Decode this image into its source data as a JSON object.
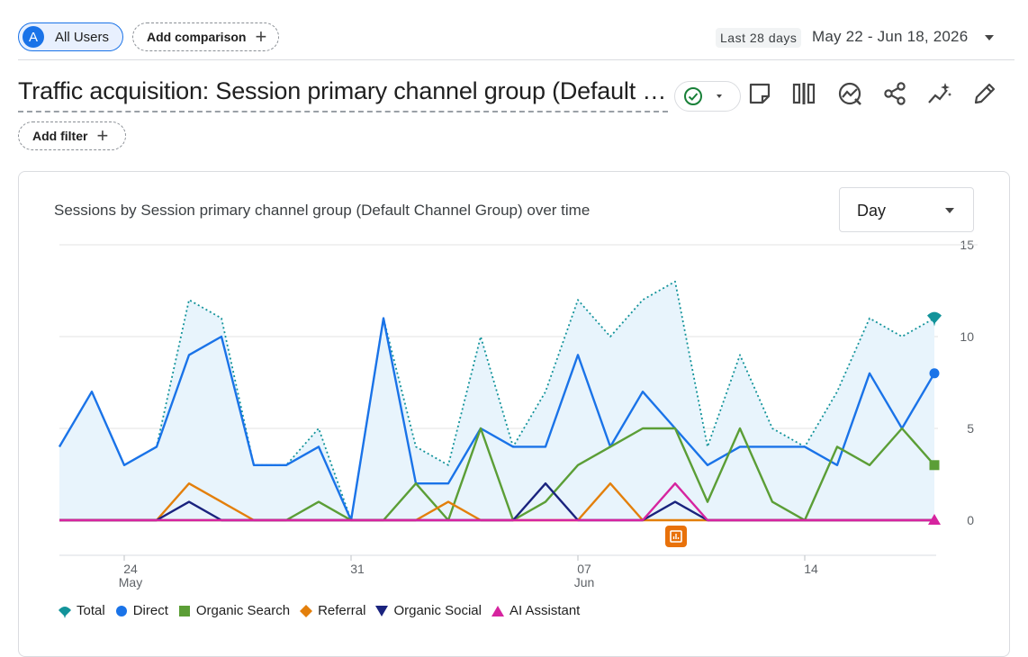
{
  "top_bar": {
    "segment_initial": "A",
    "segment_label": "All Users",
    "add_comparison_label": "Add comparison",
    "date_badge": "Last 28 days",
    "date_range": "May 22 - Jun 18, 2026"
  },
  "report": {
    "title": "Traffic acquisition: Session primary channel group (Default Channel Group)",
    "add_filter_label": "Add filter",
    "toolbar_icons": [
      "note-icon",
      "compare-icon",
      "insights-icon",
      "share-icon",
      "sparkle-icon",
      "edit-icon"
    ]
  },
  "card": {
    "granularity": "Day"
  },
  "colors": {
    "Total": "#12939a",
    "Direct": "#1a73e8",
    "Organic Search": "#5b9e36",
    "Referral": "#e37f0b",
    "Organic Social": "#1a237e",
    "AI Assistant": "#d6249f",
    "area_fill": "#e8f4fc",
    "annotation": "#e8710a"
  },
  "chart_data": {
    "type": "line",
    "title": "Sessions by Session primary channel group (Default Channel Group) over time",
    "x": [
      "2026-05-22",
      "2026-05-23",
      "2026-05-24",
      "2026-05-25",
      "2026-05-26",
      "2026-05-27",
      "2026-05-28",
      "2026-05-29",
      "2026-05-30",
      "2026-05-31",
      "2026-06-01",
      "2026-06-02",
      "2026-06-03",
      "2026-06-04",
      "2026-06-05",
      "2026-06-06",
      "2026-06-07",
      "2026-06-08",
      "2026-06-09",
      "2026-06-10",
      "2026-06-11",
      "2026-06-12",
      "2026-06-13",
      "2026-06-14",
      "2026-06-15",
      "2026-06-16",
      "2026-06-17",
      "2026-06-18"
    ],
    "x_tick_labels": [
      {
        "date": "2026-05-24",
        "day": "24",
        "month": "May"
      },
      {
        "date": "2026-05-31",
        "day": "31",
        "month": ""
      },
      {
        "date": "2026-06-07",
        "day": "07",
        "month": "Jun"
      },
      {
        "date": "2026-06-14",
        "day": "14",
        "month": ""
      }
    ],
    "y_ticks": [
      0,
      5,
      10,
      15
    ],
    "ylim": [
      0,
      15
    ],
    "grid": true,
    "y_axis_side": "right",
    "legend_position": "bottom-left",
    "series": [
      {
        "name": "Total",
        "style": "dotted-area",
        "marker": "pin",
        "values": [
          4,
          7,
          3,
          4,
          12,
          11,
          3,
          3,
          5,
          0,
          11,
          4,
          3,
          10,
          4,
          7,
          12,
          10,
          12,
          13,
          4,
          9,
          5,
          4,
          7,
          11,
          10,
          11
        ]
      },
      {
        "name": "Direct",
        "style": "line",
        "marker": "circle",
        "values": [
          4,
          7,
          3,
          4,
          9,
          10,
          3,
          3,
          4,
          0,
          11,
          2,
          2,
          5,
          4,
          4,
          9,
          4,
          7,
          5,
          3,
          4,
          4,
          4,
          3,
          8,
          5,
          8
        ]
      },
      {
        "name": "Organic Search",
        "style": "line",
        "marker": "square",
        "values": [
          0,
          0,
          0,
          0,
          0,
          0,
          0,
          0,
          1,
          0,
          0,
          2,
          0,
          5,
          0,
          1,
          3,
          4,
          5,
          5,
          1,
          5,
          1,
          0,
          4,
          3,
          5,
          3
        ]
      },
      {
        "name": "Referral",
        "style": "line",
        "marker": "diamond",
        "values": [
          0,
          0,
          0,
          0,
          2,
          1,
          0,
          0,
          0,
          0,
          0,
          0,
          1,
          0,
          0,
          0,
          0,
          2,
          0,
          0,
          0,
          0,
          0,
          0,
          0,
          0,
          0,
          0
        ]
      },
      {
        "name": "Organic Social",
        "style": "line",
        "marker": "triangle-down",
        "values": [
          0,
          0,
          0,
          0,
          1,
          0,
          0,
          0,
          0,
          0,
          0,
          0,
          0,
          0,
          0,
          2,
          0,
          0,
          0,
          1,
          0,
          0,
          0,
          0,
          0,
          0,
          0,
          0
        ]
      },
      {
        "name": "AI Assistant",
        "style": "line",
        "marker": "triangle-up",
        "values": [
          0,
          0,
          0,
          0,
          0,
          0,
          0,
          0,
          0,
          0,
          0,
          0,
          0,
          0,
          0,
          0,
          0,
          0,
          0,
          2,
          0,
          0,
          0,
          0,
          0,
          0,
          0,
          0
        ]
      }
    ],
    "annotation_marker": {
      "date": "2026-06-10",
      "icon": "annotation-icon"
    }
  }
}
